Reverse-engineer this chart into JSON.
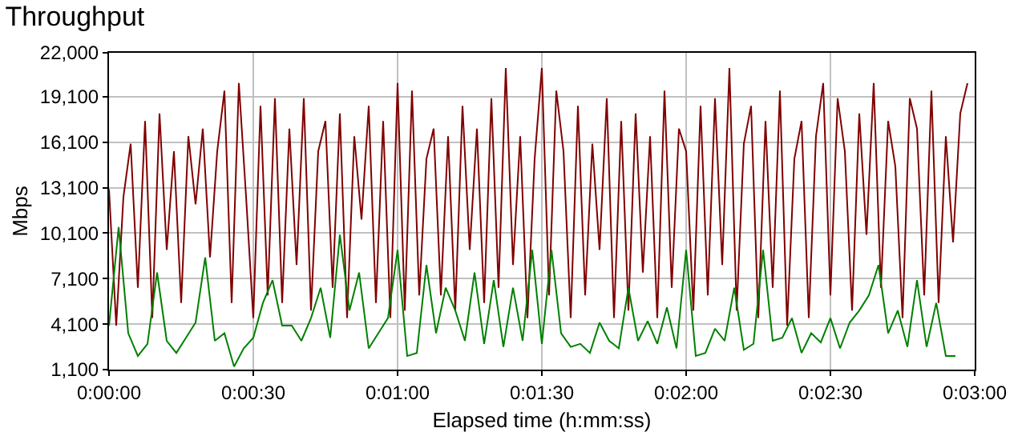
{
  "chart_data": {
    "type": "line",
    "title": "Throughput",
    "xlabel": "Elapsed time (h:mm:ss)",
    "ylabel": "Mbps",
    "xlim": [
      0,
      180
    ],
    "xticks": [
      {
        "value": 0,
        "label": "0:00:00"
      },
      {
        "value": 30,
        "label": "0:00:30"
      },
      {
        "value": 60,
        "label": "0:01:00"
      },
      {
        "value": 90,
        "label": "0:01:30"
      },
      {
        "value": 120,
        "label": "0:02:00"
      },
      {
        "value": 150,
        "label": "0:02:30"
      },
      {
        "value": 180,
        "label": "0:03:00"
      }
    ],
    "ylim": [
      1100,
      22000
    ],
    "yticks": [
      {
        "value": 1100,
        "label": "1,100"
      },
      {
        "value": 4100,
        "label": "4,100"
      },
      {
        "value": 7100,
        "label": "7,100"
      },
      {
        "value": 10100,
        "label": "10,100"
      },
      {
        "value": 13100,
        "label": "13,100"
      },
      {
        "value": 16100,
        "label": "16,100"
      },
      {
        "value": 19100,
        "label": "19,100"
      },
      {
        "value": 22000,
        "label": "22,000"
      }
    ],
    "grid": true,
    "marker": "none",
    "line_style": "solid",
    "series": [
      {
        "color": "#800000",
        "x": [
          0,
          1.5,
          3,
          4.5,
          6,
          7.5,
          9,
          10.5,
          12,
          13.5,
          15,
          16.5,
          18,
          19.5,
          21,
          22.5,
          24,
          25.5,
          27,
          28.5,
          30,
          31.5,
          33,
          34.5,
          36,
          37.5,
          39,
          40.5,
          42,
          43.5,
          45,
          46.5,
          48,
          49.5,
          51,
          52.5,
          54,
          55.5,
          57,
          58.5,
          60,
          61.5,
          63,
          64.5,
          66,
          67.5,
          69,
          70.5,
          72,
          73.5,
          75,
          76.5,
          78,
          79.5,
          81,
          82.5,
          84,
          85.5,
          87,
          88.5,
          90,
          91.5,
          93,
          94.5,
          96,
          97.5,
          99,
          100.5,
          102,
          103.5,
          105,
          106.5,
          108,
          109.5,
          111,
          112.5,
          114,
          115.5,
          117,
          118.5,
          120,
          121.5,
          123,
          124.5,
          126,
          127.5,
          129,
          130.5,
          132,
          133.5,
          135,
          136.5,
          138,
          139.5,
          141,
          142.5,
          144,
          145.5,
          147,
          148.5,
          150,
          151.5,
          153,
          154.5,
          156,
          157.5,
          159,
          160.5,
          162,
          163.5,
          165,
          166.5,
          168,
          169.5,
          171,
          172.5,
          174,
          175.5,
          177,
          178.5
        ],
        "values": [
          13000,
          4000,
          12500,
          16000,
          6500,
          17500,
          4500,
          18000,
          9000,
          15500,
          5500,
          16500,
          12000,
          17000,
          8500,
          15500,
          19500,
          5500,
          20000,
          12500,
          4500,
          18500,
          6000,
          19000,
          5500,
          17000,
          8000,
          19000,
          5000,
          15500,
          17500,
          6500,
          18000,
          4500,
          16500,
          11000,
          18500,
          5500,
          17500,
          4500,
          20000,
          5000,
          19500,
          6000,
          15000,
          17000,
          6000,
          16500,
          5000,
          18500,
          9000,
          17000,
          5500,
          19000,
          6500,
          21000,
          8000,
          16500,
          4500,
          15000,
          21000,
          6000,
          19500,
          15500,
          4500,
          18500,
          6000,
          16000,
          9000,
          19000,
          4500,
          17500,
          5000,
          18000,
          7500,
          16500,
          4500,
          19500,
          6500,
          17000,
          15500,
          5000,
          18500,
          6000,
          19000,
          8000,
          21000,
          5000,
          16000,
          18500,
          4500,
          17500,
          6500,
          19500,
          4000,
          15000,
          17500,
          4500,
          16500,
          20000,
          6000,
          19000,
          15500,
          5000,
          18000,
          10000,
          20000,
          6500,
          17500,
          14500,
          4500,
          19000,
          17000,
          6000,
          19500,
          5500,
          16500,
          9500,
          18000,
          20000
        ]
      },
      {
        "color": "#008000",
        "x": [
          0,
          2,
          4,
          6,
          8,
          10,
          12,
          14,
          16,
          18,
          20,
          22,
          24,
          26,
          28,
          30,
          32,
          34,
          36,
          38,
          40,
          42,
          44,
          46,
          48,
          50,
          52,
          54,
          56,
          58,
          60,
          62,
          64,
          66,
          68,
          70,
          72,
          74,
          76,
          78,
          80,
          82,
          84,
          86,
          88,
          90,
          92,
          94,
          96,
          98,
          100,
          102,
          104,
          106,
          108,
          110,
          112,
          114,
          116,
          118,
          120,
          122,
          124,
          126,
          128,
          130,
          132,
          134,
          136,
          138,
          140,
          142,
          144,
          146,
          148,
          150,
          152,
          154,
          156,
          158,
          160,
          162,
          164,
          166,
          168,
          170,
          172,
          174,
          176
        ],
        "values": [
          4000,
          10500,
          3500,
          2000,
          2800,
          7500,
          3000,
          2200,
          3200,
          4200,
          8500,
          3000,
          3500,
          1300,
          2500,
          3200,
          5500,
          7000,
          4000,
          4000,
          3000,
          4500,
          6500,
          3200,
          10000,
          5000,
          7500,
          2500,
          3500,
          4500,
          9000,
          2000,
          2200,
          8000,
          3500,
          6500,
          5000,
          3000,
          7500,
          2800,
          7000,
          2600,
          6500,
          3000,
          9000,
          2800,
          9000,
          3500,
          2600,
          2800,
          2200,
          4200,
          3000,
          2500,
          6500,
          3000,
          4300,
          2800,
          5200,
          2500,
          9000,
          2000,
          2200,
          3800,
          3000,
          6500,
          2400,
          2800,
          9000,
          3000,
          3200,
          4500,
          2200,
          3500,
          2900,
          4500,
          2500,
          4200,
          5000,
          6000,
          8000,
          3500,
          5000,
          2600,
          7000,
          2600,
          5500,
          2000,
          2000
        ]
      }
    ]
  }
}
